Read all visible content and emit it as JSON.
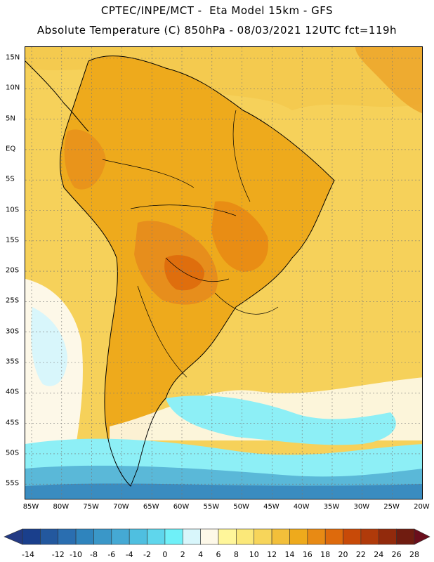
{
  "title_line1": "CPTEC/INPE/MCT -  Eta Model 15km - GFS",
  "title_line2": "Absolute Temperature (C) 850hPa - 08/03/2021 12UTC fct=119h",
  "lat_labels": [
    "15N",
    "10N",
    "5N",
    "EQ",
    "5S",
    "10S",
    "15S",
    "20S",
    "25S",
    "30S",
    "35S",
    "40S",
    "45S",
    "50S",
    "55S"
  ],
  "lon_labels": [
    "85W",
    "80W",
    "75W",
    "70W",
    "65W",
    "60W",
    "55W",
    "50W",
    "45W",
    "40W",
    "35W",
    "30W",
    "25W",
    "20W"
  ],
  "colorbar": {
    "labels": [
      "-14",
      "-12",
      "-10",
      "-8",
      "-6",
      "-4",
      "-2",
      "0",
      "2",
      "4",
      "6",
      "8",
      "10",
      "12",
      "14",
      "16",
      "18",
      "20",
      "22",
      "24",
      "26",
      "28"
    ],
    "colors": [
      "#1a3f8c",
      "#23589e",
      "#2a6eb0",
      "#2f84bd",
      "#3a97c8",
      "#45a9d4",
      "#4fbfe0",
      "#5fd6ec",
      "#6ff0f8",
      "#d8f6fb",
      "#fdf8e8",
      "#fff69a",
      "#fbe879",
      "#f7d55a",
      "#f2bf3a",
      "#eeaa1c",
      "#e88a14",
      "#de6a0c",
      "#c84a08",
      "#b03a0a",
      "#922a0c",
      "#701c10"
    ],
    "low_color": "#233a84",
    "high_color": "#6a0e1c"
  },
  "map_colors": {
    "ocean_warm": "#f6d15a",
    "land_hot": "#e78e1c",
    "land_warm": "#eeaa1c",
    "pale": "#fdf8e8",
    "cyan": "#8deff6",
    "cold_band": "#5ab8d8",
    "colder_band": "#3a8cc0"
  }
}
